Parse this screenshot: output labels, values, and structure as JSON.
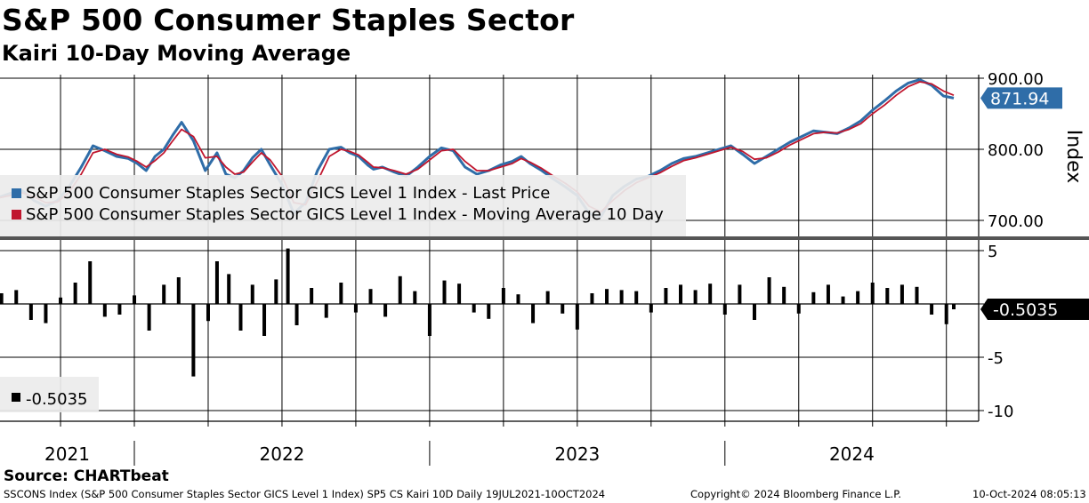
{
  "title": "S&P 500 Consumer Staples Sector",
  "subtitle": "Kairi 10-Day Moving Average",
  "source": "Source: CHARTbeat",
  "footer": {
    "left": "SSCONS Index (S&P 500 Consumer Staples Sector GICS Level 1 Index) SP5 CS Kairi 10D  Daily 19JUL2021-10OCT2024",
    "copyright": "Copyright© 2024 Bloomberg Finance L.P.",
    "timestamp": "10-Oct-2024 08:05:13"
  },
  "colors": {
    "price": "#2f6da8",
    "ma": "#c0162e",
    "kairi": "#000000",
    "last_price_label_bg": "#2f6da8",
    "kairi_label_bg": "#000000",
    "legend_bg": "#ebebeb"
  },
  "chart_data": [
    {
      "type": "line",
      "title": "S&P 500 Consumer Staples Sector",
      "ylabel": "Index",
      "ylim": [
        675,
        905
      ],
      "yticks": [
        700,
        800,
        900
      ],
      "ytick_labels": [
        "700.00",
        "800.00",
        "900.00"
      ],
      "x_start": 2021.545,
      "x_end": 2024.775,
      "x_ticks": [
        "2021",
        "2022",
        "2023",
        "2024"
      ],
      "legend": [
        {
          "name": "S&P 500 Consumer Staples Sector GICS Level 1 Index - Last Price",
          "color": "#2f6da8"
        },
        {
          "name": "S&P 500 Consumer Staples Sector GICS Level 1 Index - Moving Average 10 Day",
          "color": "#c0162e"
        }
      ],
      "last_value_label": "871.94",
      "series": [
        {
          "name": "Last Price",
          "x": [
            2021.545,
            2021.58,
            2021.62,
            2021.66,
            2021.7,
            2021.74,
            2021.78,
            2021.82,
            2021.86,
            2021.9,
            2021.94,
            2021.98,
            2022.01,
            2022.04,
            2022.07,
            2022.1,
            2022.13,
            2022.16,
            2022.2,
            2022.24,
            2022.28,
            2022.31,
            2022.34,
            2022.37,
            2022.4,
            2022.43,
            2022.46,
            2022.5,
            2022.54,
            2022.58,
            2022.62,
            2022.66,
            2022.7,
            2022.73,
            2022.76,
            2022.79,
            2022.81,
            2022.84,
            2022.88,
            2022.92,
            2022.96,
            2023.0,
            2023.04,
            2023.08,
            2023.12,
            2023.16,
            2023.2,
            2023.24,
            2023.28,
            2023.31,
            2023.34,
            2023.38,
            2023.42,
            2023.46,
            2023.5,
            2023.54,
            2023.58,
            2023.62,
            2023.66,
            2023.7,
            2023.74,
            2023.78,
            2023.82,
            2023.86,
            2023.9,
            2023.94,
            2023.98,
            2024.02,
            2024.06,
            2024.1,
            2024.14,
            2024.18,
            2024.22,
            2024.26,
            2024.3,
            2024.34,
            2024.38,
            2024.42,
            2024.46,
            2024.5,
            2024.54,
            2024.58,
            2024.62,
            2024.66,
            2024.7,
            2024.74,
            2024.775
          ],
          "values": [
            733,
            738,
            742,
            728,
            720,
            728,
            748,
            775,
            805,
            798,
            790,
            787,
            780,
            770,
            790,
            800,
            820,
            838,
            812,
            770,
            795,
            765,
            760,
            770,
            788,
            800,
            778,
            750,
            710,
            725,
            770,
            800,
            803,
            795,
            790,
            778,
            772,
            775,
            768,
            762,
            775,
            790,
            802,
            798,
            775,
            765,
            770,
            778,
            783,
            790,
            780,
            770,
            758,
            747,
            735,
            710,
            705,
            735,
            748,
            758,
            762,
            770,
            780,
            787,
            790,
            795,
            800,
            805,
            793,
            780,
            790,
            800,
            810,
            818,
            826,
            824,
            822,
            830,
            840,
            855,
            868,
            882,
            893,
            898,
            890,
            875,
            872
          ]
        },
        {
          "name": "Moving Average 10 Day",
          "x": [
            2021.545,
            2021.58,
            2021.62,
            2021.66,
            2021.7,
            2021.74,
            2021.78,
            2021.82,
            2021.86,
            2021.9,
            2021.94,
            2021.98,
            2022.01,
            2022.04,
            2022.07,
            2022.1,
            2022.13,
            2022.16,
            2022.2,
            2022.24,
            2022.28,
            2022.31,
            2022.34,
            2022.37,
            2022.4,
            2022.43,
            2022.46,
            2022.5,
            2022.54,
            2022.58,
            2022.62,
            2022.66,
            2022.7,
            2022.73,
            2022.76,
            2022.79,
            2022.81,
            2022.84,
            2022.88,
            2022.92,
            2022.96,
            2023.0,
            2023.04,
            2023.08,
            2023.12,
            2023.16,
            2023.2,
            2023.24,
            2023.28,
            2023.31,
            2023.34,
            2023.38,
            2023.42,
            2023.46,
            2023.5,
            2023.54,
            2023.58,
            2023.62,
            2023.66,
            2023.7,
            2023.74,
            2023.78,
            2023.82,
            2023.86,
            2023.9,
            2023.94,
            2023.98,
            2024.02,
            2024.06,
            2024.1,
            2024.14,
            2024.18,
            2024.22,
            2024.26,
            2024.3,
            2024.34,
            2024.38,
            2024.42,
            2024.46,
            2024.5,
            2024.54,
            2024.58,
            2024.62,
            2024.66,
            2024.7,
            2024.74,
            2024.775
          ],
          "values": [
            732,
            735,
            739,
            733,
            725,
            726,
            740,
            765,
            795,
            800,
            793,
            789,
            783,
            775,
            784,
            795,
            812,
            828,
            818,
            788,
            790,
            775,
            765,
            768,
            782,
            795,
            785,
            762,
            725,
            722,
            755,
            790,
            800,
            797,
            792,
            782,
            775,
            774,
            770,
            765,
            772,
            785,
            798,
            800,
            783,
            770,
            770,
            775,
            780,
            787,
            782,
            773,
            762,
            752,
            740,
            720,
            712,
            728,
            742,
            753,
            760,
            767,
            776,
            784,
            788,
            793,
            798,
            803,
            797,
            786,
            788,
            796,
            806,
            814,
            822,
            824,
            823,
            828,
            836,
            850,
            862,
            876,
            888,
            895,
            892,
            882,
            876
          ]
        }
      ]
    },
    {
      "type": "bar",
      "title": "SP5 CS Kairi 10D",
      "ylim": [
        -11,
        6
      ],
      "yticks": [
        5,
        0,
        -5,
        -10
      ],
      "ytick_labels": [
        "5",
        "",
        "-5",
        "-10"
      ],
      "last_value_label": "-0.5035",
      "legend": [
        {
          "name": "-0.5035",
          "color": "#000000"
        }
      ],
      "series": [
        {
          "name": "Kairi 10D",
          "x": [
            2021.55,
            2021.6,
            2021.65,
            2021.7,
            2021.75,
            2021.8,
            2021.85,
            2021.9,
            2021.95,
            2022.0,
            2022.05,
            2022.1,
            2022.15,
            2022.2,
            2022.25,
            2022.28,
            2022.32,
            2022.36,
            2022.4,
            2022.44,
            2022.48,
            2022.52,
            2022.55,
            2022.6,
            2022.65,
            2022.7,
            2022.75,
            2022.8,
            2022.85,
            2022.9,
            2022.95,
            2023.0,
            2023.05,
            2023.1,
            2023.15,
            2023.2,
            2023.25,
            2023.3,
            2023.35,
            2023.4,
            2023.45,
            2023.5,
            2023.55,
            2023.6,
            2023.65,
            2023.7,
            2023.75,
            2023.8,
            2023.85,
            2023.9,
            2023.95,
            2024.0,
            2024.05,
            2024.1,
            2024.15,
            2024.2,
            2024.25,
            2024.3,
            2024.35,
            2024.4,
            2024.45,
            2024.5,
            2024.55,
            2024.6,
            2024.65,
            2024.7,
            2024.75,
            2024.775
          ],
          "values": [
            1.0,
            1.3,
            -1.5,
            -1.8,
            0.6,
            2.0,
            4.0,
            -1.2,
            -1.0,
            0.8,
            -2.5,
            1.8,
            2.5,
            -6.8,
            -1.6,
            4.0,
            2.8,
            -2.5,
            1.8,
            -3.0,
            2.3,
            5.2,
            -2.0,
            1.5,
            -1.3,
            2.0,
            -0.8,
            1.4,
            -1.2,
            2.6,
            1.2,
            -3.0,
            2.2,
            1.9,
            -0.8,
            -1.4,
            1.5,
            0.9,
            -1.8,
            1.2,
            -0.9,
            -2.4,
            1.0,
            1.4,
            1.3,
            1.2,
            -0.8,
            1.5,
            1.8,
            1.3,
            1.9,
            -1.0,
            1.8,
            -1.5,
            2.5,
            1.6,
            -0.9,
            1.1,
            1.8,
            0.7,
            1.2,
            2.0,
            1.5,
            1.8,
            1.6,
            -1.0,
            -1.9,
            -0.5035
          ]
        }
      ]
    }
  ]
}
